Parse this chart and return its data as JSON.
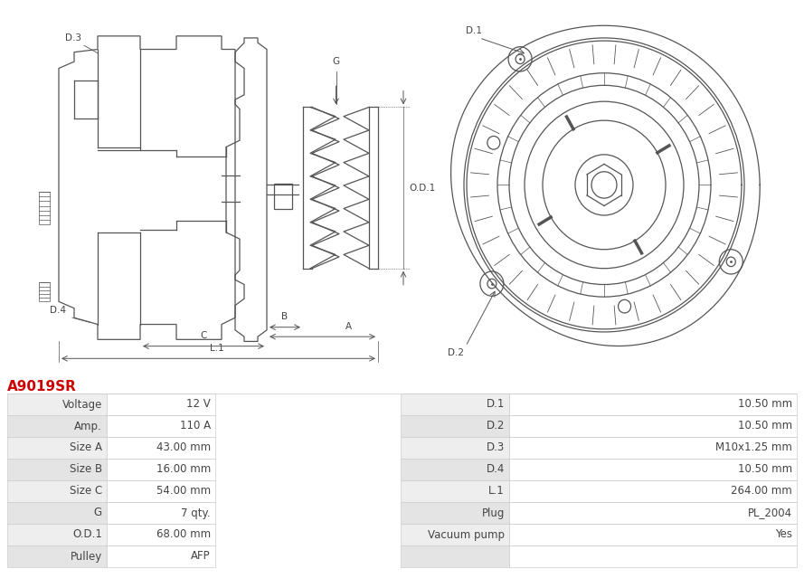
{
  "title": "A9019SR",
  "title_color": "#cc0000",
  "table_rows": [
    [
      "Voltage",
      "12 V",
      "D.1",
      "10.50 mm"
    ],
    [
      "Amp.",
      "110 A",
      "D.2",
      "10.50 mm"
    ],
    [
      "Size A",
      "43.00 mm",
      "D.3",
      "M10x1.25 mm"
    ],
    [
      "Size B",
      "16.00 mm",
      "D.4",
      "10.50 mm"
    ],
    [
      "Size C",
      "54.00 mm",
      "L.1",
      "264.00 mm"
    ],
    [
      "G",
      "7 qty.",
      "Plug",
      "PL_2004"
    ],
    [
      "O.D.1",
      "68.00 mm",
      "Vacuum pump",
      "Yes"
    ],
    [
      "Pulley",
      "AFP",
      "",
      ""
    ]
  ],
  "bg_color": "#ffffff",
  "table_row_bg1": "#eeeeee",
  "table_row_bg2": "#e4e4e4",
  "table_border_color": "#cccccc",
  "text_color": "#444444",
  "diagram_color": "#555555",
  "label_fontsize": 7.5,
  "table_fontsize": 8.5,
  "lw": 0.9
}
